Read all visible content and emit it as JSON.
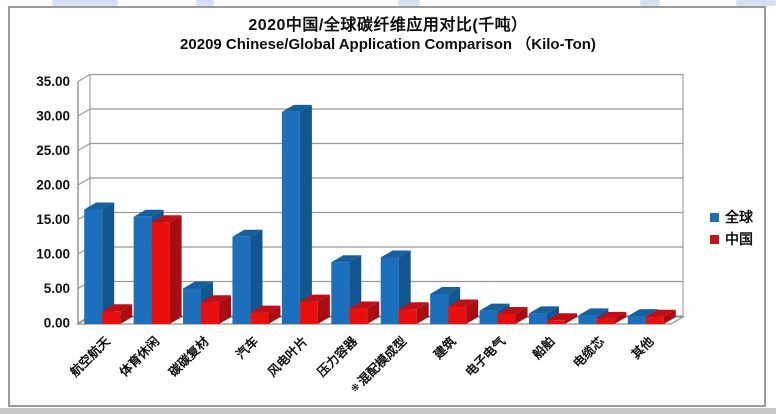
{
  "title": {
    "line1": "2020中国/全球碳纤维应用对比(千吨）",
    "line2": "20209 Chinese/Global Application Comparison （Kilo-Ton)"
  },
  "legend": {
    "items": [
      {
        "label": "全球",
        "color": "#1F6CB0"
      },
      {
        "label": "中国",
        "color": "#C5121C"
      }
    ]
  },
  "chart_data": {
    "type": "bar",
    "style": "3d-column",
    "title": "2020中国/全球碳纤维应用对比(千吨）",
    "subtitle": "20209 Chinese/Global Application Comparison （Kilo-Ton)",
    "categories": [
      "航空航天",
      "体育休闲",
      "碳碳复材",
      "汽车",
      "风电叶片",
      "压力容器",
      "混配模成型",
      "建筑",
      "电子电气",
      "船舶",
      "电缆芯",
      "其他"
    ],
    "series": [
      {
        "name": "全球",
        "key": "global",
        "color": "#1B6FBB",
        "color_side": "#11568F",
        "color_top": "#15619E",
        "legend_color": "#1F6CB0",
        "values": [
          16.45,
          15.4,
          5.0,
          12.5,
          30.6,
          8.8,
          9.5,
          4.2,
          1.8,
          1.4,
          1.1,
          1.0
        ]
      },
      {
        "name": "中国",
        "key": "china",
        "color": "#E90F0F",
        "color_side": "#A80D12",
        "color_top": "#C00E14",
        "legend_color": "#C5121C",
        "values": [
          1.7,
          14.6,
          3.0,
          1.5,
          3.1,
          2.1,
          2.0,
          2.4,
          1.3,
          0.4,
          0.6,
          0.9
        ]
      }
    ],
    "xlabel": "",
    "ylabel": "",
    "ylim": [
      0,
      35
    ],
    "ytick_step": 5,
    "ytick_labels": [
      "0.00",
      "5.00",
      "10.00",
      "15.00",
      "20.00",
      "25.00",
      "30.00",
      "35.00"
    ],
    "grid": true,
    "legend_position": "right"
  },
  "colors": {
    "gridline": "#9a9a9a",
    "wall_stroke": "#8f8f8f",
    "axis_text": "#111111",
    "background": "#ffffff"
  },
  "artifacts": {
    "bottom_glyph": "※"
  }
}
